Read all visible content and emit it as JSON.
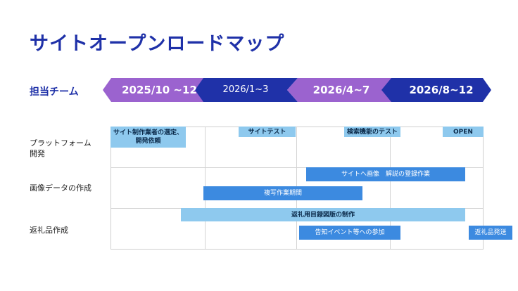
{
  "title": "サイトオープンロードマップ",
  "team_label": "担当チーム",
  "phases": [
    "2025/10 ~12",
    "2026/1~3",
    "2026/4~7",
    "2026/8~12"
  ],
  "rows": [
    "プラットフォーム開発",
    "画像データの作成",
    "返礼品作成"
  ],
  "tasks": {
    "t1": "サイト制作業者の選定、開発依頼",
    "t2": "サイトテスト",
    "t3": "検索機能のテスト",
    "t4": "OPEN",
    "t5": "サイトへ画像　解説の登録作業",
    "t6": "複写作業期間",
    "t7": "返礼用目録図版の制作",
    "t8": "告知イベント等への参加",
    "t9": "返礼品発送"
  },
  "colors": {
    "title": "#1f31a8",
    "phase_purple": "#9b63cf",
    "phase_navy": "#1f31a8",
    "phase_indigo": "#2b35b8",
    "bar_light": "#8ec9ee",
    "bar_mid": "#3c8ae0"
  }
}
